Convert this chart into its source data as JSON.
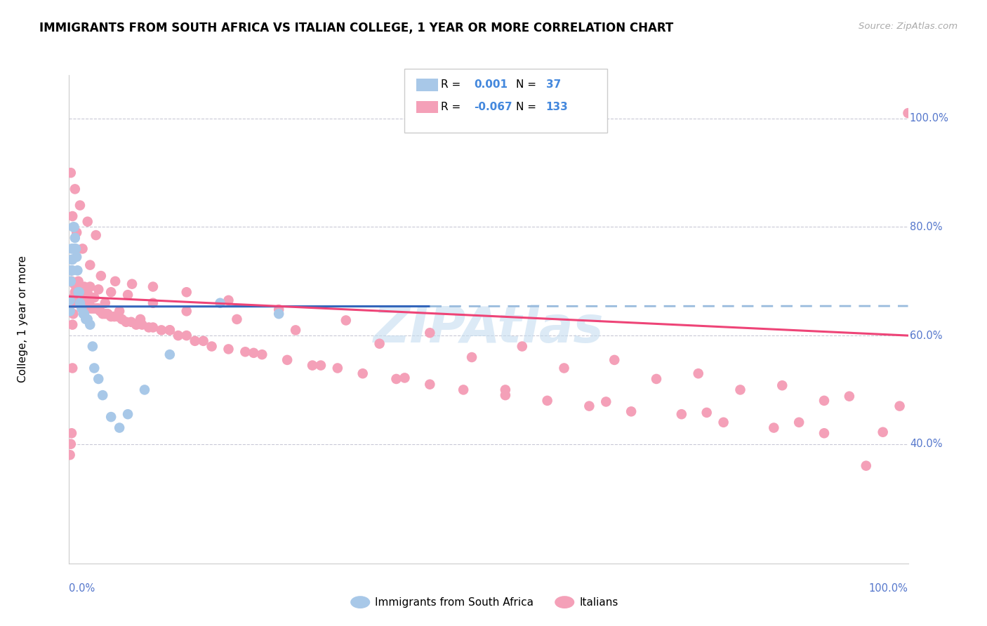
{
  "title": "IMMIGRANTS FROM SOUTH AFRICA VS ITALIAN COLLEGE, 1 YEAR OR MORE CORRELATION CHART",
  "source": "Source: ZipAtlas.com",
  "ylabel": "College, 1 year or more",
  "xlim": [
    0,
    1
  ],
  "ylim": [
    0.18,
    1.08
  ],
  "yticks": [
    0.4,
    0.6,
    0.8,
    1.0
  ],
  "ytick_labels": [
    "40.0%",
    "60.0%",
    "80.0%",
    "100.0%"
  ],
  "blue_color": "#a8c8e8",
  "pink_color": "#f4a0b8",
  "blue_line_color": "#3366bb",
  "pink_line_color": "#ee4477",
  "blue_dash_color": "#99bbdd",
  "watermark_color": "#c5ddf0",
  "blue_scatter_x": [
    0.001,
    0.001,
    0.002,
    0.002,
    0.003,
    0.003,
    0.003,
    0.004,
    0.004,
    0.005,
    0.005,
    0.006,
    0.007,
    0.007,
    0.008,
    0.009,
    0.01,
    0.011,
    0.012,
    0.013,
    0.015,
    0.017,
    0.018,
    0.02,
    0.022,
    0.025,
    0.028,
    0.03,
    0.035,
    0.04,
    0.05,
    0.06,
    0.07,
    0.09,
    0.12,
    0.18,
    0.25
  ],
  "blue_scatter_y": [
    0.645,
    0.665,
    0.7,
    0.72,
    0.72,
    0.74,
    0.76,
    0.74,
    0.72,
    0.76,
    0.8,
    0.8,
    0.78,
    0.76,
    0.76,
    0.745,
    0.72,
    0.68,
    0.68,
    0.66,
    0.65,
    0.64,
    0.64,
    0.63,
    0.63,
    0.62,
    0.58,
    0.54,
    0.52,
    0.49,
    0.45,
    0.43,
    0.455,
    0.5,
    0.565,
    0.66,
    0.64
  ],
  "pink_scatter_x": [
    0.001,
    0.002,
    0.003,
    0.004,
    0.004,
    0.005,
    0.005,
    0.006,
    0.007,
    0.007,
    0.008,
    0.009,
    0.01,
    0.011,
    0.012,
    0.013,
    0.014,
    0.015,
    0.016,
    0.017,
    0.018,
    0.019,
    0.02,
    0.021,
    0.022,
    0.023,
    0.024,
    0.025,
    0.027,
    0.029,
    0.031,
    0.033,
    0.035,
    0.037,
    0.04,
    0.043,
    0.046,
    0.05,
    0.054,
    0.058,
    0.063,
    0.068,
    0.074,
    0.08,
    0.087,
    0.095,
    0.1,
    0.11,
    0.12,
    0.13,
    0.14,
    0.15,
    0.17,
    0.19,
    0.21,
    0.23,
    0.26,
    0.29,
    0.32,
    0.35,
    0.39,
    0.43,
    0.47,
    0.52,
    0.57,
    0.62,
    0.67,
    0.73,
    0.78,
    0.84,
    0.9,
    0.95,
    1.0,
    0.005,
    0.008,
    0.012,
    0.018,
    0.025,
    0.035,
    0.05,
    0.07,
    0.1,
    0.14,
    0.2,
    0.27,
    0.37,
    0.48,
    0.59,
    0.7,
    0.8,
    0.9,
    0.003,
    0.006,
    0.01,
    0.015,
    0.022,
    0.03,
    0.043,
    0.06,
    0.085,
    0.12,
    0.16,
    0.22,
    0.3,
    0.4,
    0.52,
    0.64,
    0.76,
    0.87,
    0.97,
    0.004,
    0.009,
    0.016,
    0.025,
    0.038,
    0.055,
    0.075,
    0.1,
    0.14,
    0.19,
    0.25,
    0.33,
    0.43,
    0.54,
    0.65,
    0.75,
    0.85,
    0.93,
    0.99,
    0.002,
    0.007,
    0.013,
    0.022,
    0.032
  ],
  "pink_scatter_y": [
    0.38,
    0.4,
    0.42,
    0.54,
    0.62,
    0.64,
    0.66,
    0.66,
    0.66,
    0.68,
    0.66,
    0.68,
    0.68,
    0.7,
    0.68,
    0.68,
    0.68,
    0.68,
    0.68,
    0.68,
    0.68,
    0.67,
    0.67,
    0.665,
    0.66,
    0.66,
    0.66,
    0.65,
    0.65,
    0.65,
    0.65,
    0.65,
    0.65,
    0.645,
    0.64,
    0.64,
    0.64,
    0.635,
    0.635,
    0.635,
    0.63,
    0.625,
    0.625,
    0.62,
    0.62,
    0.615,
    0.615,
    0.61,
    0.61,
    0.6,
    0.6,
    0.59,
    0.58,
    0.575,
    0.57,
    0.565,
    0.555,
    0.545,
    0.54,
    0.53,
    0.52,
    0.51,
    0.5,
    0.49,
    0.48,
    0.47,
    0.46,
    0.455,
    0.44,
    0.43,
    0.42,
    0.36,
    1.01,
    0.67,
    0.68,
    0.69,
    0.69,
    0.69,
    0.685,
    0.68,
    0.675,
    0.66,
    0.645,
    0.63,
    0.61,
    0.585,
    0.56,
    0.54,
    0.52,
    0.5,
    0.48,
    0.7,
    0.695,
    0.69,
    0.685,
    0.678,
    0.67,
    0.66,
    0.645,
    0.63,
    0.61,
    0.59,
    0.568,
    0.545,
    0.522,
    0.5,
    0.478,
    0.458,
    0.44,
    0.422,
    0.82,
    0.79,
    0.76,
    0.73,
    0.71,
    0.7,
    0.695,
    0.69,
    0.68,
    0.665,
    0.648,
    0.628,
    0.605,
    0.58,
    0.555,
    0.53,
    0.508,
    0.488,
    0.47,
    0.9,
    0.87,
    0.84,
    0.81,
    0.785
  ]
}
